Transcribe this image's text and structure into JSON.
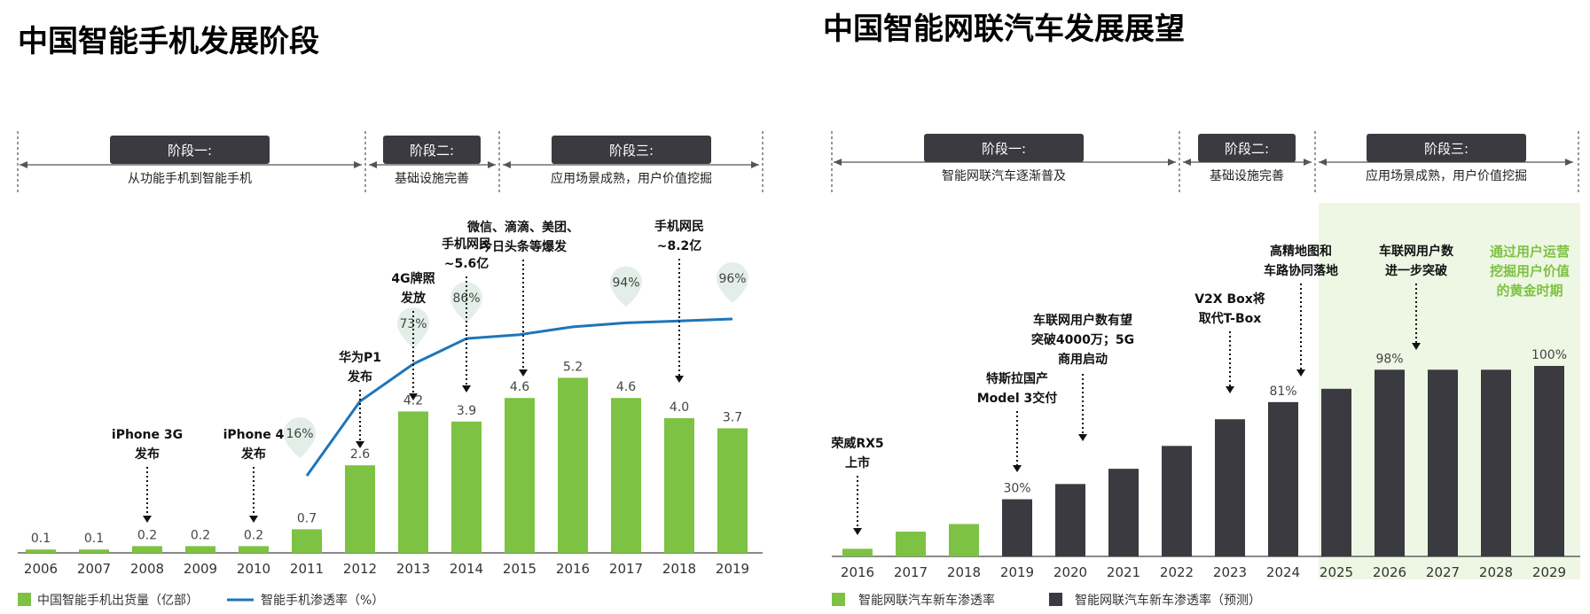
{
  "colors": {
    "green": "#7dc242",
    "dark": "#3a3a40",
    "line": "#1f75b8",
    "bubble": "#e3eee8",
    "forecast_bg": "#eef7e4",
    "stage_box": "#3a3a40"
  },
  "chart_data": [
    {
      "type": "bar",
      "title": "中国智能手机发展阶段",
      "stages": [
        {
          "label": "阶段一:",
          "desc": "从功能手机到智能手机"
        },
        {
          "label": "阶段二:",
          "desc": "基础设施完善"
        },
        {
          "label": "阶段三:",
          "desc": "应用场景成熟，用户价值挖掘"
        }
      ],
      "categories": [
        "2006",
        "2007",
        "2008",
        "2009",
        "2010",
        "2011",
        "2012",
        "2013",
        "2014",
        "2015",
        "2016",
        "2017",
        "2018",
        "2019"
      ],
      "series": [
        {
          "name": "中国智能手机出货量（亿部）",
          "type": "bar",
          "values": [
            0.1,
            0.1,
            0.2,
            0.2,
            0.2,
            0.7,
            2.6,
            4.2,
            3.9,
            4.6,
            5.2,
            4.6,
            4.0,
            3.7
          ],
          "labels": [
            "0.1",
            "0.1",
            "0.2",
            "0.2",
            "0.2",
            "0.7",
            "2.6",
            "4.2",
            "3.9",
            "4.6",
            "5.2",
            "4.6",
            "4.0",
            "3.7"
          ]
        },
        {
          "name": "智能手机渗透率（%）",
          "type": "line",
          "x": [
            "2011",
            "2012",
            "2013",
            "2014",
            "2015",
            "2016",
            "2017",
            "2018",
            "2019"
          ],
          "values": [
            16,
            54,
            73,
            86,
            88,
            92,
            94,
            95,
            96
          ]
        }
      ],
      "penetration_labels": [
        {
          "category": "2011",
          "text": "16%"
        },
        {
          "category": "2013",
          "text": "73%"
        },
        {
          "category": "2014",
          "text": "86%"
        },
        {
          "category": "2017",
          "text": "94%"
        },
        {
          "category": "2019",
          "text": "96%"
        }
      ],
      "annotations": [
        {
          "category": "2008",
          "lines": [
            "iPhone 3G",
            "发布"
          ]
        },
        {
          "category": "2010",
          "lines": [
            "iPhone 4",
            "发布"
          ]
        },
        {
          "category": "2012",
          "lines": [
            "华为P1",
            "发布"
          ]
        },
        {
          "category": "2013",
          "lines": [
            "4G牌照",
            "发放"
          ]
        },
        {
          "category": "2014",
          "lines": [
            "手机网民",
            "~5.6亿"
          ]
        },
        {
          "category": "2015",
          "lines": [
            "微信、滴滴、美团、",
            "今日头条等爆发"
          ]
        },
        {
          "category": "2018",
          "lines": [
            "手机网民",
            "~8.2亿"
          ]
        }
      ]
    },
    {
      "type": "bar",
      "title": "中国智能网联汽车发展展望",
      "stages": [
        {
          "label": "阶段一:",
          "desc": "智能网联汽车逐渐普及"
        },
        {
          "label": "阶段二:",
          "desc": "基础设施完善"
        },
        {
          "label": "阶段三:",
          "desc": "应用场景成熟，用户价值挖掘"
        }
      ],
      "categories": [
        "2016",
        "2017",
        "2018",
        "2019",
        "2020",
        "2021",
        "2022",
        "2023",
        "2024",
        "2025",
        "2026",
        "2027",
        "2028",
        "2029"
      ],
      "series": [
        {
          "name": "智能网联汽车新车渗透率",
          "type": "bar",
          "x": [
            "2016",
            "2017",
            "2018"
          ],
          "values": [
            4,
            13,
            17
          ]
        },
        {
          "name": "智能网联汽车新车渗透率（预测）",
          "type": "bar",
          "x": [
            "2019",
            "2020",
            "2021",
            "2022",
            "2023",
            "2024",
            "2025",
            "2026",
            "2027",
            "2028",
            "2029"
          ],
          "values": [
            30,
            38,
            46,
            58,
            72,
            81,
            88,
            98,
            98,
            98,
            100
          ]
        }
      ],
      "value_labels": [
        {
          "category": "2019",
          "text": "30%"
        },
        {
          "category": "2024",
          "text": "81%"
        },
        {
          "category": "2026",
          "text": "98%"
        },
        {
          "category": "2029",
          "text": "100%"
        }
      ],
      "annotations": [
        {
          "category": "2016",
          "lines": [
            "荣威RX5",
            "上市"
          ]
        },
        {
          "category": "2019",
          "lines": [
            "特斯拉国产",
            "Model 3交付"
          ]
        },
        {
          "category": "2020",
          "lines": [
            "车联网用户数有望",
            "突破4000万；5G",
            "商用启动"
          ]
        },
        {
          "category": "2023",
          "lines": [
            "V2X Box将",
            "取代T-Box"
          ]
        },
        {
          "category": "2024",
          "lines": [
            "高精地图和",
            "车路协同落地"
          ]
        },
        {
          "category": "2026",
          "lines": [
            "车联网用户数",
            "进一步突破"
          ]
        }
      ],
      "highlight_note": [
        "通过用户运营",
        "挖掘用户价值",
        "的黄金时期"
      ]
    }
  ]
}
